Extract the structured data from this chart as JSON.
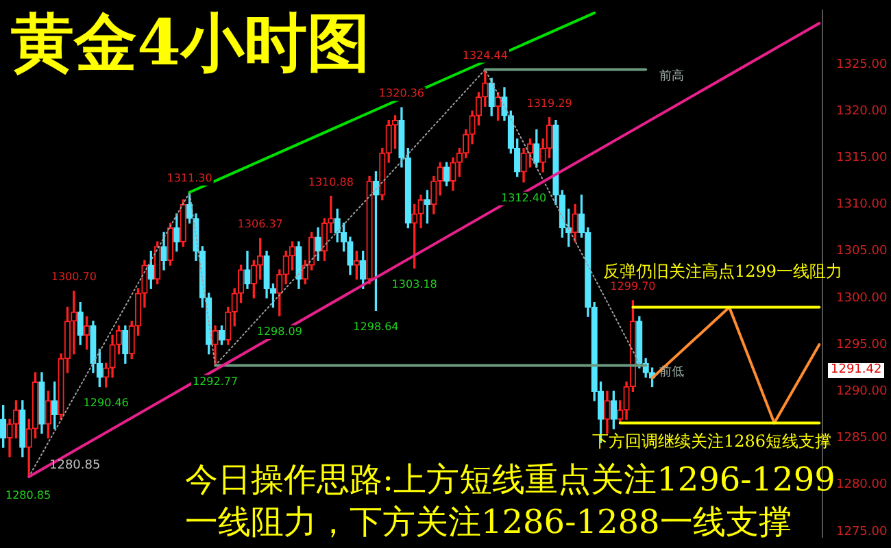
{
  "chart_data": {
    "type": "candlestick",
    "title": "黄金4小时图",
    "categories": [
      null,
      null,
      null,
      null,
      null,
      null,
      null,
      null,
      null,
      null,
      null,
      null,
      null,
      null,
      null,
      null,
      null,
      null,
      null,
      null,
      null,
      null,
      null,
      null,
      null,
      null,
      null,
      null,
      null,
      null,
      null,
      null,
      null,
      null,
      null,
      null,
      null,
      null,
      null,
      null,
      null,
      null,
      null,
      null,
      null,
      null,
      null,
      null,
      null,
      null,
      null,
      null,
      null,
      null,
      null,
      null,
      null,
      null,
      null,
      null,
      null,
      null,
      null,
      null,
      null,
      null,
      null,
      null,
      null,
      null,
      null,
      null,
      null,
      null,
      null,
      null,
      null,
      null,
      null,
      null,
      null,
      null,
      null,
      null,
      null,
      null,
      null,
      null,
      null,
      null,
      null,
      null,
      null,
      null,
      null,
      null,
      null,
      null,
      null,
      null,
      null,
      null,
      null,
      null,
      null,
      null,
      null,
      null,
      null,
      null,
      null,
      null,
      null,
      null,
      null,
      null,
      null,
      null,
      null,
      null,
      null,
      null,
      null,
      null,
      null,
      null,
      null,
      null
    ],
    "ohlc": [
      [
        1287,
        1288.5,
        1284,
        1285
      ],
      [
        1285,
        1287,
        1283,
        1286.5
      ],
      [
        1286.5,
        1289,
        1285,
        1288
      ],
      [
        1288,
        1289,
        1283,
        1284
      ],
      [
        1284,
        1287,
        1280.85,
        1286
      ],
      [
        1286,
        1292,
        1285,
        1291
      ],
      [
        1291,
        1292,
        1285.5,
        1286.5
      ],
      [
        1286.5,
        1290,
        1285,
        1289
      ],
      [
        1289,
        1291,
        1286,
        1287.5
      ],
      [
        1287.5,
        1294,
        1287,
        1293.5
      ],
      [
        1293.5,
        1299,
        1292,
        1297.5
      ],
      [
        1297.5,
        1300.7,
        1294,
        1298.5
      ],
      [
        1298.5,
        1299.5,
        1295,
        1296
      ],
      [
        1296,
        1298,
        1294.5,
        1297
      ],
      [
        1297,
        1297.5,
        1292,
        1293
      ],
      [
        1293,
        1294.5,
        1290.5,
        1291.5
      ],
      [
        1291.5,
        1293,
        1290.46,
        1292.5
      ],
      [
        1292.5,
        1296,
        1291.5,
        1295
      ],
      [
        1295,
        1297,
        1294,
        1296.5
      ],
      [
        1296.5,
        1297,
        1293,
        1294
      ],
      [
        1294,
        1297.5,
        1293.5,
        1297
      ],
      [
        1297,
        1301,
        1296,
        1300.5
      ],
      [
        1300.5,
        1304,
        1299,
        1303.5
      ],
      [
        1303.5,
        1305,
        1301,
        1302
      ],
      [
        1302,
        1306,
        1301.5,
        1305.5
      ],
      [
        1305.5,
        1307,
        1303,
        1304
      ],
      [
        1304,
        1308,
        1303.5,
        1307.5
      ],
      [
        1307.5,
        1309,
        1305,
        1306
      ],
      [
        1306,
        1310.5,
        1305.5,
        1310
      ],
      [
        1310,
        1311.3,
        1308,
        1308.5
      ],
      [
        1308.5,
        1309,
        1304,
        1305
      ],
      [
        1305,
        1305.5,
        1299,
        1300
      ],
      [
        1300,
        1300.5,
        1294,
        1295
      ],
      [
        1295,
        1297,
        1292.77,
        1296.5
      ],
      [
        1296.5,
        1297,
        1295,
        1295.5
      ],
      [
        1295.5,
        1299,
        1295,
        1298.5
      ],
      [
        1298.5,
        1301,
        1297,
        1300.5
      ],
      [
        1300.5,
        1303.5,
        1299.5,
        1303
      ],
      [
        1303,
        1305,
        1301,
        1301.5
      ],
      [
        1301.5,
        1304,
        1300,
        1303.5
      ],
      [
        1303.5,
        1306.37,
        1302,
        1304.5
      ],
      [
        1304.5,
        1305,
        1300,
        1301
      ],
      [
        1301,
        1301.5,
        1299,
        1300.5
      ],
      [
        1300.5,
        1303,
        1298.09,
        1302.5
      ],
      [
        1302.5,
        1305,
        1301.5,
        1304.5
      ],
      [
        1304.5,
        1306,
        1303,
        1305.5
      ],
      [
        1305.5,
        1306,
        1301,
        1302
      ],
      [
        1302,
        1304,
        1301.5,
        1303.5
      ],
      [
        1303.5,
        1307,
        1303,
        1306.5
      ],
      [
        1306.5,
        1307.5,
        1304,
        1305
      ],
      [
        1305,
        1308.5,
        1304,
        1308
      ],
      [
        1308,
        1310.88,
        1307,
        1308.5
      ],
      [
        1308.5,
        1309.5,
        1306,
        1307
      ],
      [
        1307,
        1308,
        1305,
        1306
      ],
      [
        1306,
        1306.5,
        1302.5,
        1303.5
      ],
      [
        1303.5,
        1305,
        1302,
        1304
      ],
      [
        1304,
        1305,
        1301,
        1302
      ],
      [
        1302,
        1313,
        1301.5,
        1312.5
      ],
      [
        1312.5,
        1313.5,
        1298.64,
        1311
      ],
      [
        1311,
        1316,
        1310.5,
        1315.5
      ],
      [
        1315.5,
        1319,
        1314.5,
        1318.5
      ],
      [
        1318.5,
        1319.5,
        1316,
        1319
      ],
      [
        1319,
        1320.36,
        1314,
        1315
      ],
      [
        1315,
        1316,
        1307.5,
        1308
      ],
      [
        1308,
        1310,
        1303.18,
        1309
      ],
      [
        1309,
        1311,
        1307.5,
        1310.5
      ],
      [
        1310.5,
        1311.5,
        1308,
        1310
      ],
      [
        1310,
        1313,
        1309,
        1312.5
      ],
      [
        1312.5,
        1314.5,
        1311,
        1314
      ],
      [
        1314,
        1314.5,
        1312,
        1312.5
      ],
      [
        1312.5,
        1315,
        1311.5,
        1314.5
      ],
      [
        1314.5,
        1316,
        1313,
        1315.5
      ],
      [
        1315.5,
        1318,
        1315,
        1317.5
      ],
      [
        1317.5,
        1320,
        1316.5,
        1319.5
      ],
      [
        1319.5,
        1322,
        1318.5,
        1321.5
      ],
      [
        1321.5,
        1324.44,
        1320.5,
        1323
      ],
      [
        1323,
        1323.5,
        1319.5,
        1320.5
      ],
      [
        1320.5,
        1322,
        1319,
        1321.5
      ],
      [
        1321.5,
        1322.5,
        1319,
        1319.5
      ],
      [
        1319.5,
        1320,
        1315.5,
        1316
      ],
      [
        1316,
        1317,
        1313,
        1313.5
      ],
      [
        1313.5,
        1316,
        1312.4,
        1315.5
      ],
      [
        1315.5,
        1317,
        1314,
        1316.5
      ],
      [
        1316.5,
        1318,
        1314,
        1314.5
      ],
      [
        1314.5,
        1317,
        1313.5,
        1316
      ],
      [
        1316,
        1319.29,
        1315,
        1318.5
      ],
      [
        1318.5,
        1319,
        1310,
        1311
      ],
      [
        1311,
        1311.5,
        1306.5,
        1307.5
      ],
      [
        1307.5,
        1309.5,
        1305.5,
        1307
      ],
      [
        1307,
        1310,
        1306,
        1309
      ],
      [
        1309,
        1311,
        1306.5,
        1307
      ],
      [
        1307,
        1307.5,
        1298,
        1299
      ],
      [
        1299,
        1299.5,
        1289,
        1290
      ],
      [
        1290,
        1291,
        1284.5,
        1287
      ],
      [
        1287,
        1290,
        1285.5,
        1289
      ],
      [
        1289,
        1290,
        1286,
        1287
      ],
      [
        1287,
        1289,
        1286.6,
        1288
      ],
      [
        1288,
        1291,
        1287,
        1290.5
      ],
      [
        1290.5,
        1299.7,
        1290,
        1297.5
      ],
      [
        1297.5,
        1298,
        1292.5,
        1293
      ],
      [
        1293,
        1293.5,
        1291.5,
        1292
      ],
      [
        1292,
        1292.5,
        1290.5,
        1291.42
      ],
      null,
      null,
      null,
      null,
      null,
      null,
      null,
      null,
      null,
      null,
      null,
      null,
      null,
      null,
      null,
      null,
      null,
      null,
      null,
      null,
      null,
      null,
      null,
      null,
      null,
      null
    ],
    "colors": [
      "#55e5ff",
      "#ff2020",
      "#ff2020",
      "#55e5ff",
      "#ff2020",
      "#ff2020",
      "#55e5ff",
      "#ff2020",
      "#55e5ff",
      "#ff2020",
      "#ff2020",
      "#ff2020",
      "#55e5ff",
      "#ff2020",
      "#55e5ff",
      "#55e5ff",
      "#ff2020",
      "#ff2020",
      "#ff2020",
      "#55e5ff",
      "#ff2020",
      "#ff2020",
      "#ff2020",
      "#55e5ff",
      "#ff2020",
      "#55e5ff",
      "#ff2020",
      "#55e5ff",
      "#ff2020",
      "#55e5ff",
      "#55e5ff",
      "#55e5ff",
      "#55e5ff",
      "#ff2020",
      "#55e5ff",
      "#ff2020",
      "#ff2020",
      "#ff2020",
      "#55e5ff",
      "#ff2020",
      "#ff2020",
      "#55e5ff",
      "#55e5ff",
      "#ff2020",
      "#ff2020",
      "#ff2020",
      "#55e5ff",
      "#ff2020",
      "#ff2020",
      "#55e5ff",
      "#ff2020",
      "#ff2020",
      "#55e5ff",
      "#55e5ff",
      "#55e5ff",
      "#ff2020",
      "#55e5ff",
      "#ff2020",
      "#55e5ff",
      "#ff2020",
      "#ff2020",
      "#ff2020",
      "#55e5ff",
      "#55e5ff",
      "#ff2020",
      "#ff2020",
      "#55e5ff",
      "#ff2020",
      "#ff2020",
      "#55e5ff",
      "#ff2020",
      "#ff2020",
      "#ff2020",
      "#ff2020",
      "#ff2020",
      "#ff2020",
      "#55e5ff",
      "#ff2020",
      "#55e5ff",
      "#55e5ff",
      "#55e5ff",
      "#ff2020",
      "#ff2020",
      "#55e5ff",
      "#ff2020",
      "#ff2020",
      "#55e5ff",
      "#55e5ff",
      "#55e5ff",
      "#ff2020",
      "#55e5ff",
      "#55e5ff",
      "#55e5ff",
      "#55e5ff",
      "#ff2020",
      "#55e5ff",
      "#ff2020",
      "#ff2020",
      "#ff2020",
      "#55e5ff",
      "#55e5ff",
      "#55e5ff",
      null,
      null,
      null,
      null,
      null,
      null,
      null,
      null,
      null,
      null,
      null,
      null,
      null,
      null,
      null,
      null,
      null,
      null,
      null,
      null,
      null,
      null,
      null,
      null,
      null,
      null
    ],
    "series": [
      {
        "type": "line",
        "color": "#00e000",
        "values": [
          null,
          null,
          null,
          null,
          null,
          null,
          null,
          null,
          null,
          null,
          null,
          null,
          null,
          null,
          null,
          null,
          null,
          null,
          null,
          null,
          null,
          null,
          null,
          null,
          null,
          null,
          null,
          null,
          null,
          1311.3,
          null,
          null,
          null,
          null,
          null,
          null,
          null,
          null,
          null,
          null,
          null,
          null,
          null,
          null,
          null,
          null,
          null,
          null,
          null,
          null,
          null,
          null,
          null,
          null,
          null,
          null,
          null,
          null,
          null,
          null,
          null,
          null,
          null,
          null,
          null,
          null,
          null,
          null,
          null,
          null,
          null,
          null,
          null,
          null,
          null,
          null,
          null,
          null,
          null,
          null,
          null,
          null,
          null,
          null,
          null,
          null,
          null,
          null,
          null,
          null,
          null,
          null,
          1330.5,
          null,
          null,
          null,
          null,
          null,
          null,
          null,
          null,
          null,
          null,
          null,
          null,
          null,
          null,
          null,
          null,
          null,
          null,
          null,
          null,
          null,
          null,
          null,
          null,
          null,
          null,
          null,
          null,
          null,
          null,
          null,
          null,
          null,
          null,
          null
        ]
      },
      {
        "type": "line",
        "color": "#e8208c",
        "values": [
          null,
          null,
          null,
          null,
          1280.85,
          null,
          null,
          null,
          null,
          null,
          null,
          null,
          null,
          null,
          null,
          null,
          null,
          null,
          null,
          null,
          null,
          null,
          null,
          null,
          null,
          null,
          null,
          null,
          null,
          null,
          null,
          null,
          null,
          null,
          null,
          null,
          null,
          null,
          null,
          null,
          null,
          null,
          null,
          null,
          null,
          null,
          null,
          null,
          null,
          null,
          null,
          null,
          null,
          null,
          null,
          null,
          null,
          null,
          null,
          null,
          null,
          null,
          null,
          null,
          null,
          null,
          null,
          null,
          null,
          null,
          null,
          null,
          null,
          null,
          null,
          null,
          null,
          null,
          null,
          null,
          null,
          null,
          null,
          null,
          null,
          null,
          null,
          null,
          null,
          null,
          null,
          null,
          null,
          null,
          null,
          null,
          null,
          null,
          null,
          null,
          null,
          null,
          null,
          null,
          null,
          null,
          null,
          null,
          null,
          null,
          null,
          null,
          null,
          null,
          null,
          null,
          null,
          null,
          null,
          null,
          null,
          null,
          null,
          null,
          null,
          null,
          null,
          1329.4
        ]
      },
      {
        "type": "line",
        "name": "前高",
        "color": "#6a9a80",
        "values": [
          null,
          null,
          null,
          null,
          null,
          null,
          null,
          null,
          null,
          null,
          null,
          null,
          null,
          null,
          null,
          null,
          null,
          null,
          null,
          null,
          null,
          null,
          null,
          null,
          null,
          null,
          null,
          null,
          null,
          null,
          null,
          null,
          null,
          null,
          null,
          null,
          null,
          null,
          null,
          null,
          null,
          null,
          null,
          null,
          null,
          null,
          null,
          null,
          null,
          null,
          null,
          null,
          null,
          null,
          null,
          null,
          null,
          null,
          null,
          null,
          null,
          null,
          null,
          null,
          null,
          null,
          null,
          null,
          null,
          null,
          null,
          null,
          null,
          null,
          null,
          1324.44,
          null,
          null,
          null,
          null,
          null,
          null,
          null,
          null,
          null,
          null,
          null,
          null,
          null,
          null,
          null,
          null,
          null,
          null,
          null,
          null,
          null,
          null,
          null,
          null,
          1324.44,
          null,
          null,
          null,
          null,
          null,
          null,
          null,
          null,
          null,
          null,
          null,
          null,
          null,
          null,
          null,
          null,
          null,
          null,
          null,
          null,
          null,
          null,
          null,
          null,
          null,
          null,
          null
        ]
      },
      {
        "type": "line",
        "name": "前低",
        "color": "#6a9a80",
        "values": [
          null,
          null,
          null,
          null,
          null,
          null,
          null,
          null,
          null,
          null,
          null,
          null,
          null,
          null,
          null,
          null,
          null,
          null,
          null,
          null,
          null,
          null,
          null,
          null,
          null,
          null,
          null,
          null,
          null,
          null,
          null,
          null,
          null,
          1292.77,
          null,
          null,
          null,
          null,
          null,
          null,
          null,
          null,
          null,
          null,
          null,
          null,
          null,
          null,
          null,
          null,
          null,
          null,
          null,
          null,
          null,
          null,
          null,
          null,
          null,
          null,
          null,
          null,
          null,
          null,
          null,
          null,
          null,
          null,
          null,
          null,
          null,
          null,
          null,
          null,
          null,
          null,
          null,
          null,
          null,
          null,
          null,
          null,
          null,
          null,
          null,
          null,
          null,
          null,
          null,
          null,
          null,
          null,
          null,
          null,
          null,
          null,
          null,
          null,
          null,
          null,
          1292.77,
          null,
          null,
          null,
          null,
          null,
          null,
          null,
          null,
          null,
          null,
          null,
          null,
          null,
          null,
          null,
          null,
          null,
          null,
          null,
          null,
          null,
          null,
          null,
          null,
          null,
          null,
          null
        ]
      },
      {
        "type": "line",
        "color": "#ffff00",
        "values": [
          null,
          null,
          null,
          null,
          null,
          null,
          null,
          null,
          null,
          null,
          null,
          null,
          null,
          null,
          null,
          null,
          null,
          null,
          null,
          null,
          null,
          null,
          null,
          null,
          null,
          null,
          null,
          null,
          null,
          null,
          null,
          null,
          null,
          null,
          null,
          null,
          null,
          null,
          null,
          null,
          null,
          null,
          null,
          null,
          null,
          null,
          null,
          null,
          null,
          null,
          null,
          null,
          null,
          null,
          null,
          null,
          null,
          null,
          null,
          null,
          null,
          null,
          null,
          null,
          null,
          null,
          null,
          null,
          null,
          null,
          null,
          null,
          null,
          null,
          null,
          null,
          null,
          null,
          null,
          null,
          null,
          null,
          null,
          null,
          null,
          null,
          null,
          null,
          null,
          null,
          null,
          null,
          null,
          null,
          null,
          null,
          null,
          null,
          1299,
          null,
          null,
          null,
          null,
          null,
          null,
          null,
          null,
          null,
          null,
          null,
          null,
          null,
          null,
          null,
          null,
          null,
          null,
          null,
          null,
          null,
          null,
          null,
          null,
          null,
          null,
          null,
          null,
          1299
        ]
      },
      {
        "type": "line",
        "color": "#ffff00",
        "values": [
          null,
          null,
          null,
          null,
          null,
          null,
          null,
          null,
          null,
          null,
          null,
          null,
          null,
          null,
          null,
          null,
          null,
          null,
          null,
          null,
          null,
          null,
          null,
          null,
          null,
          null,
          null,
          null,
          null,
          null,
          null,
          null,
          null,
          null,
          null,
          null,
          null,
          null,
          null,
          null,
          null,
          null,
          null,
          null,
          null,
          null,
          null,
          null,
          null,
          null,
          null,
          null,
          null,
          null,
          null,
          null,
          null,
          null,
          null,
          null,
          null,
          null,
          null,
          null,
          null,
          null,
          null,
          null,
          null,
          null,
          null,
          null,
          null,
          null,
          null,
          null,
          null,
          null,
          null,
          null,
          null,
          null,
          null,
          null,
          null,
          null,
          null,
          null,
          null,
          null,
          null,
          null,
          null,
          null,
          null,
          null,
          1286.6,
          null,
          null,
          null,
          null,
          null,
          null,
          null,
          null,
          null,
          null,
          null,
          null,
          null,
          null,
          null,
          null,
          null,
          null,
          null,
          null,
          null,
          null,
          null,
          null,
          null,
          null,
          null,
          null,
          null,
          null,
          1286.6
        ]
      },
      {
        "type": "line",
        "color": "#a0a0a0",
        "line_style": "dotted",
        "values": [
          null,
          null,
          null,
          null,
          1280.85,
          null,
          null,
          null,
          null,
          null,
          null,
          null,
          null,
          null,
          null,
          null,
          null,
          null,
          null,
          null,
          null,
          null,
          null,
          null,
          null,
          null,
          null,
          null,
          null,
          1311.3,
          null,
          null,
          null,
          1292.77,
          null,
          null,
          null,
          null,
          null,
          null,
          null,
          null,
          null,
          null,
          null,
          null,
          null,
          null,
          null,
          null,
          null,
          null,
          null,
          null,
          null,
          null,
          null,
          null,
          null,
          null,
          null,
          null,
          null,
          null,
          null,
          null,
          null,
          null,
          null,
          null,
          null,
          null,
          null,
          null,
          null,
          1324.44,
          null,
          null,
          null,
          null,
          null,
          null,
          null,
          null,
          null,
          null,
          null,
          null,
          null,
          null,
          null,
          null,
          null,
          null,
          null,
          null,
          null,
          null,
          null,
          1293,
          null,
          null,
          null,
          null,
          null,
          null,
          null,
          null,
          null,
          null,
          null,
          null,
          null,
          null,
          null,
          null,
          null,
          null,
          null,
          null,
          null,
          null,
          null,
          null,
          null,
          null,
          null,
          null
        ]
      },
      {
        "type": "line",
        "color": "#ff8c30",
        "values": [
          null,
          null,
          null,
          null,
          null,
          null,
          null,
          null,
          null,
          null,
          null,
          null,
          null,
          null,
          null,
          null,
          null,
          null,
          null,
          null,
          null,
          null,
          null,
          null,
          null,
          null,
          null,
          null,
          null,
          null,
          null,
          null,
          null,
          null,
          null,
          null,
          null,
          null,
          null,
          null,
          null,
          null,
          null,
          null,
          null,
          null,
          null,
          null,
          null,
          null,
          null,
          null,
          null,
          null,
          null,
          null,
          null,
          null,
          null,
          null,
          null,
          null,
          null,
          null,
          null,
          null,
          null,
          null,
          null,
          null,
          null,
          null,
          null,
          null,
          null,
          null,
          null,
          null,
          null,
          null,
          null,
          null,
          null,
          null,
          null,
          null,
          null,
          null,
          null,
          null,
          null,
          null,
          null,
          null,
          null,
          null,
          null,
          null,
          null,
          null,
          null,
          1291.42,
          null,
          null,
          null,
          null,
          null,
          null,
          null,
          null,
          null,
          null,
          null,
          1299,
          null,
          null,
          null,
          null,
          null,
          null,
          1286.6,
          null,
          null,
          null,
          null,
          null,
          null,
          1295
        ]
      }
    ],
    "ylim": [
      1274.4,
      1330.8
    ],
    "yticks": [
      {
        "value": 1275,
        "label": "1275.00"
      },
      {
        "value": 1280,
        "label": "1280.00"
      },
      {
        "value": 1285,
        "label": "1285.00"
      },
      {
        "value": 1290,
        "label": "1290.00"
      },
      {
        "value": 1295,
        "label": "1295.00"
      },
      {
        "value": 1300,
        "label": "1300.00"
      },
      {
        "value": 1305,
        "label": "1305.00"
      },
      {
        "value": 1310,
        "label": "1310.00"
      },
      {
        "value": 1315,
        "label": "1315.00"
      },
      {
        "value": 1320,
        "label": "1320.00"
      },
      {
        "value": 1325,
        "label": "1325.00"
      }
    ],
    "tick_labels": "y",
    "grid": false,
    "legend": false,
    "annotations": [
      "1280.85",
      "1280.85",
      "1291.42",
      {
        "text": "1300.70",
        "y": 1300.7
      },
      {
        "text": "1290.46",
        "y": 1290.46
      },
      {
        "text": "1311.30",
        "y": 1311.3
      },
      {
        "text": "1292.77",
        "y": 1292.77
      },
      {
        "text": "1306.37",
        "y": 1306.37
      },
      {
        "text": "1298.09",
        "y": 1298.09
      },
      {
        "text": "1310.88",
        "y": 1310.88
      },
      {
        "text": "1298.64",
        "y": 1298.64
      },
      {
        "text": "1320.36",
        "y": 1320.36
      },
      {
        "text": "1303.18",
        "y": 1303.18
      },
      {
        "text": "1324.44",
        "y": 1324.44
      },
      {
        "text": "1312.40",
        "y": 1312.4
      },
      {
        "text": "1319.29",
        "y": 1319.29
      },
      {
        "text": "1299.70",
        "y": 1299.7
      },
      "反弹仍旧关注高点1299一线阻力",
      "下方回调继续关注1286短线支撑",
      "今日操作思路:上方短线重点关注1296-1299",
      "一线阻力，下方关注1286-1288一线支撑"
    ]
  }
}
